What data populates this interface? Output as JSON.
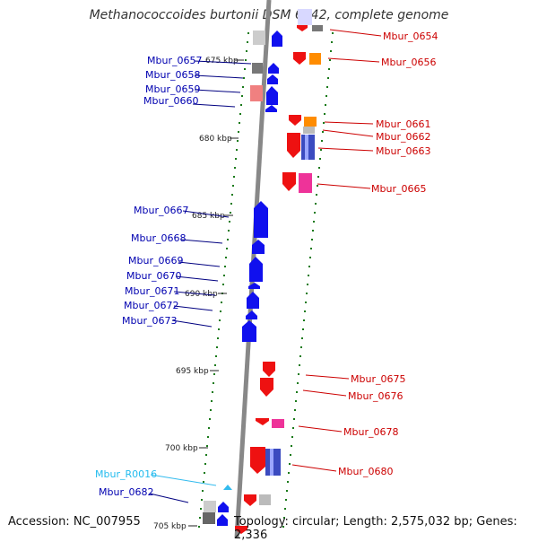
{
  "title": "Methanococcoides burtonii DSM 6242, complete genome",
  "accession": "Accession: NC_007955",
  "summary": "Topology: circular; Length: 2,575,032 bp; Genes: 2,336",
  "scale_labels": [
    "675 kbp",
    "680 kbp",
    "685 kbp",
    "690 kbp",
    "695 kbp",
    "700 kbp",
    "705 kbp"
  ],
  "genes_left": [
    "Mbur_0657",
    "Mbur_0658",
    "Mbur_0659",
    "Mbur_0660",
    "Mbur_0667",
    "Mbur_0668",
    "Mbur_0669",
    "Mbur_0670",
    "Mbur_0671",
    "Mbur_0672",
    "Mbur_0673",
    "Mbur_R0016",
    "Mbur_0682"
  ],
  "genes_right": [
    "Mbur_0654",
    "Mbur_0656",
    "Mbur_0661",
    "Mbur_0662",
    "Mbur_0663",
    "Mbur_0665",
    "Mbur_0675",
    "Mbur_0676",
    "Mbur_0678",
    "Mbur_0680"
  ],
  "colors": {
    "forward_strand": "#0000ee",
    "reverse_strand": "#ee0000",
    "rna": "#33bbee",
    "backbone": "#888888",
    "gc_ticks": "#1a7a1a"
  }
}
